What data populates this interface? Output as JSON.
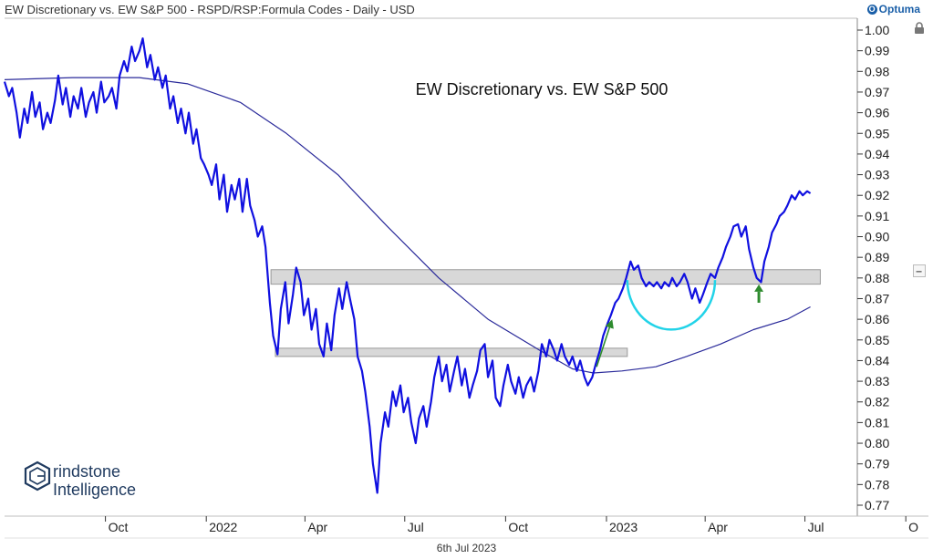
{
  "header": {
    "title": "EW Discretionary vs. EW S&P 500 - RSPD/RSP:Formula Codes - Daily - USD",
    "brand": "Optuma"
  },
  "footer": {
    "date": "6th Jul 2023"
  },
  "watermark": {
    "line1": "rindstone",
    "line2": "Intelligence"
  },
  "chart_data": {
    "type": "line",
    "title": "EW Discretionary vs. EW S&P 500",
    "ylim": [
      0.765,
      1.005
    ],
    "y_ticks": [
      "1.00",
      "0.99",
      "0.98",
      "0.97",
      "0.96",
      "0.95",
      "0.94",
      "0.93",
      "0.92",
      "0.91",
      "0.90",
      "0.89",
      "0.88",
      "0.87",
      "0.86",
      "0.85",
      "0.84",
      "0.83",
      "0.82",
      "0.81",
      "0.80",
      "0.79",
      "0.78",
      "0.77"
    ],
    "x_ticks": [
      "Oct",
      "2022",
      "Apr",
      "Jul",
      "Oct",
      "2023",
      "Apr",
      "Jul",
      "O"
    ],
    "x_range": [
      "2021-07-01",
      "2023-10-15"
    ],
    "x_tick_dates": [
      "2021-10-01",
      "2022-01-01",
      "2022-04-01",
      "2022-07-01",
      "2022-10-01",
      "2023-01-01",
      "2023-04-01",
      "2023-07-01",
      "2023-10-01"
    ],
    "grid": false,
    "series": [
      {
        "role": "price",
        "color": "#1010e0",
        "points": [
          [
            "2021-07-01",
            0.975
          ],
          [
            "2021-07-05",
            0.968
          ],
          [
            "2021-07-08",
            0.972
          ],
          [
            "2021-07-12",
            0.96
          ],
          [
            "2021-07-15",
            0.948
          ],
          [
            "2021-07-19",
            0.962
          ],
          [
            "2021-07-22",
            0.955
          ],
          [
            "2021-07-26",
            0.97
          ],
          [
            "2021-07-29",
            0.958
          ],
          [
            "2021-08-02",
            0.965
          ],
          [
            "2021-08-05",
            0.952
          ],
          [
            "2021-08-09",
            0.96
          ],
          [
            "2021-08-12",
            0.955
          ],
          [
            "2021-08-16",
            0.966
          ],
          [
            "2021-08-19",
            0.978
          ],
          [
            "2021-08-23",
            0.964
          ],
          [
            "2021-08-26",
            0.972
          ],
          [
            "2021-08-30",
            0.958
          ],
          [
            "2021-09-02",
            0.968
          ],
          [
            "2021-09-06",
            0.962
          ],
          [
            "2021-09-09",
            0.972
          ],
          [
            "2021-09-13",
            0.958
          ],
          [
            "2021-09-16",
            0.965
          ],
          [
            "2021-09-20",
            0.97
          ],
          [
            "2021-09-23",
            0.96
          ],
          [
            "2021-09-27",
            0.975
          ],
          [
            "2021-09-30",
            0.965
          ],
          [
            "2021-10-04",
            0.968
          ],
          [
            "2021-10-07",
            0.972
          ],
          [
            "2021-10-11",
            0.962
          ],
          [
            "2021-10-14",
            0.978
          ],
          [
            "2021-10-18",
            0.985
          ],
          [
            "2021-10-21",
            0.98
          ],
          [
            "2021-10-25",
            0.992
          ],
          [
            "2021-10-28",
            0.985
          ],
          [
            "2021-11-01",
            0.99
          ],
          [
            "2021-11-04",
            0.996
          ],
          [
            "2021-11-08",
            0.982
          ],
          [
            "2021-11-11",
            0.988
          ],
          [
            "2021-11-15",
            0.976
          ],
          [
            "2021-11-18",
            0.982
          ],
          [
            "2021-11-22",
            0.972
          ],
          [
            "2021-11-25",
            0.978
          ],
          [
            "2021-11-29",
            0.962
          ],
          [
            "2021-12-02",
            0.968
          ],
          [
            "2021-12-06",
            0.955
          ],
          [
            "2021-12-09",
            0.962
          ],
          [
            "2021-12-13",
            0.95
          ],
          [
            "2021-12-16",
            0.96
          ],
          [
            "2021-12-20",
            0.945
          ],
          [
            "2021-12-23",
            0.952
          ],
          [
            "2021-12-27",
            0.938
          ],
          [
            "2021-12-30",
            0.935
          ],
          [
            "2022-01-03",
            0.93
          ],
          [
            "2022-01-06",
            0.925
          ],
          [
            "2022-01-10",
            0.935
          ],
          [
            "2022-01-13",
            0.918
          ],
          [
            "2022-01-17",
            0.93
          ],
          [
            "2022-01-20",
            0.912
          ],
          [
            "2022-01-24",
            0.925
          ],
          [
            "2022-01-27",
            0.918
          ],
          [
            "2022-01-31",
            0.928
          ],
          [
            "2022-02-03",
            0.912
          ],
          [
            "2022-02-07",
            0.928
          ],
          [
            "2022-02-10",
            0.915
          ],
          [
            "2022-02-14",
            0.908
          ],
          [
            "2022-02-17",
            0.9
          ],
          [
            "2022-02-21",
            0.905
          ],
          [
            "2022-02-24",
            0.895
          ],
          [
            "2022-02-28",
            0.868
          ],
          [
            "2022-03-03",
            0.852
          ],
          [
            "2022-03-07",
            0.843
          ],
          [
            "2022-03-10",
            0.865
          ],
          [
            "2022-03-14",
            0.878
          ],
          [
            "2022-03-17",
            0.858
          ],
          [
            "2022-03-21",
            0.872
          ],
          [
            "2022-03-24",
            0.885
          ],
          [
            "2022-03-28",
            0.878
          ],
          [
            "2022-03-31",
            0.862
          ],
          [
            "2022-04-04",
            0.87
          ],
          [
            "2022-04-07",
            0.855
          ],
          [
            "2022-04-11",
            0.865
          ],
          [
            "2022-04-14",
            0.848
          ],
          [
            "2022-04-18",
            0.842
          ],
          [
            "2022-04-21",
            0.858
          ],
          [
            "2022-04-25",
            0.845
          ],
          [
            "2022-04-28",
            0.862
          ],
          [
            "2022-05-02",
            0.875
          ],
          [
            "2022-05-05",
            0.865
          ],
          [
            "2022-05-09",
            0.878
          ],
          [
            "2022-05-12",
            0.87
          ],
          [
            "2022-05-16",
            0.86
          ],
          [
            "2022-05-19",
            0.842
          ],
          [
            "2022-05-23",
            0.835
          ],
          [
            "2022-05-26",
            0.825
          ],
          [
            "2022-05-30",
            0.808
          ],
          [
            "2022-06-02",
            0.79
          ],
          [
            "2022-06-06",
            0.776
          ],
          [
            "2022-06-09",
            0.8
          ],
          [
            "2022-06-13",
            0.815
          ],
          [
            "2022-06-16",
            0.808
          ],
          [
            "2022-06-20",
            0.825
          ],
          [
            "2022-06-23",
            0.818
          ],
          [
            "2022-06-27",
            0.828
          ],
          [
            "2022-06-30",
            0.815
          ],
          [
            "2022-07-04",
            0.822
          ],
          [
            "2022-07-07",
            0.81
          ],
          [
            "2022-07-11",
            0.8
          ],
          [
            "2022-07-14",
            0.812
          ],
          [
            "2022-07-18",
            0.818
          ],
          [
            "2022-07-21",
            0.808
          ],
          [
            "2022-07-25",
            0.82
          ],
          [
            "2022-07-28",
            0.832
          ],
          [
            "2022-08-01",
            0.842
          ],
          [
            "2022-08-04",
            0.83
          ],
          [
            "2022-08-08",
            0.838
          ],
          [
            "2022-08-11",
            0.825
          ],
          [
            "2022-08-15",
            0.835
          ],
          [
            "2022-08-18",
            0.842
          ],
          [
            "2022-08-22",
            0.828
          ],
          [
            "2022-08-25",
            0.836
          ],
          [
            "2022-08-29",
            0.822
          ],
          [
            "2022-09-01",
            0.828
          ],
          [
            "2022-09-05",
            0.835
          ],
          [
            "2022-09-08",
            0.845
          ],
          [
            "2022-09-12",
            0.848
          ],
          [
            "2022-09-15",
            0.832
          ],
          [
            "2022-09-19",
            0.84
          ],
          [
            "2022-09-22",
            0.822
          ],
          [
            "2022-09-26",
            0.818
          ],
          [
            "2022-09-29",
            0.828
          ],
          [
            "2022-10-03",
            0.838
          ],
          [
            "2022-10-06",
            0.83
          ],
          [
            "2022-10-10",
            0.824
          ],
          [
            "2022-10-13",
            0.832
          ],
          [
            "2022-10-17",
            0.822
          ],
          [
            "2022-10-20",
            0.828
          ],
          [
            "2022-10-24",
            0.832
          ],
          [
            "2022-10-27",
            0.825
          ],
          [
            "2022-10-31",
            0.835
          ],
          [
            "2022-11-03",
            0.848
          ],
          [
            "2022-11-07",
            0.842
          ],
          [
            "2022-11-10",
            0.85
          ],
          [
            "2022-11-14",
            0.845
          ],
          [
            "2022-11-17",
            0.84
          ],
          [
            "2022-11-21",
            0.848
          ],
          [
            "2022-11-24",
            0.842
          ],
          [
            "2022-11-28",
            0.838
          ],
          [
            "2022-12-01",
            0.842
          ],
          [
            "2022-12-05",
            0.835
          ],
          [
            "2022-12-08",
            0.84
          ],
          [
            "2022-12-12",
            0.832
          ],
          [
            "2022-12-15",
            0.828
          ],
          [
            "2022-12-19",
            0.832
          ],
          [
            "2022-12-22",
            0.838
          ],
          [
            "2022-12-26",
            0.845
          ],
          [
            "2022-12-29",
            0.852
          ],
          [
            "2023-01-02",
            0.858
          ],
          [
            "2023-01-05",
            0.862
          ],
          [
            "2023-01-09",
            0.868
          ],
          [
            "2023-01-12",
            0.87
          ],
          [
            "2023-01-16",
            0.875
          ],
          [
            "2023-01-19",
            0.88
          ],
          [
            "2023-01-23",
            0.888
          ],
          [
            "2023-01-26",
            0.884
          ],
          [
            "2023-01-30",
            0.886
          ],
          [
            "2023-02-02",
            0.88
          ],
          [
            "2023-02-06",
            0.876
          ],
          [
            "2023-02-09",
            0.878
          ],
          [
            "2023-02-13",
            0.876
          ],
          [
            "2023-02-16",
            0.878
          ],
          [
            "2023-02-20",
            0.875
          ],
          [
            "2023-02-23",
            0.878
          ],
          [
            "2023-02-27",
            0.876
          ],
          [
            "2023-03-02",
            0.88
          ],
          [
            "2023-03-06",
            0.876
          ],
          [
            "2023-03-09",
            0.878
          ],
          [
            "2023-03-13",
            0.882
          ],
          [
            "2023-03-16",
            0.878
          ],
          [
            "2023-03-20",
            0.87
          ],
          [
            "2023-03-23",
            0.875
          ],
          [
            "2023-03-27",
            0.868
          ],
          [
            "2023-03-30",
            0.872
          ],
          [
            "2023-04-03",
            0.878
          ],
          [
            "2023-04-06",
            0.882
          ],
          [
            "2023-04-10",
            0.88
          ],
          [
            "2023-04-13",
            0.885
          ],
          [
            "2023-04-17",
            0.89
          ],
          [
            "2023-04-20",
            0.895
          ],
          [
            "2023-04-24",
            0.9
          ],
          [
            "2023-04-27",
            0.905
          ],
          [
            "2023-05-01",
            0.906
          ],
          [
            "2023-05-04",
            0.9
          ],
          [
            "2023-05-08",
            0.905
          ],
          [
            "2023-05-11",
            0.894
          ],
          [
            "2023-05-15",
            0.885
          ],
          [
            "2023-05-18",
            0.88
          ],
          [
            "2023-05-22",
            0.878
          ],
          [
            "2023-05-25",
            0.888
          ],
          [
            "2023-05-29",
            0.895
          ],
          [
            "2023-06-01",
            0.902
          ],
          [
            "2023-06-05",
            0.906
          ],
          [
            "2023-06-08",
            0.91
          ],
          [
            "2023-06-12",
            0.912
          ],
          [
            "2023-06-15",
            0.915
          ],
          [
            "2023-06-19",
            0.92
          ],
          [
            "2023-06-22",
            0.918
          ],
          [
            "2023-06-26",
            0.922
          ],
          [
            "2023-06-29",
            0.92
          ],
          [
            "2023-07-03",
            0.922
          ],
          [
            "2023-07-06",
            0.921
          ]
        ]
      },
      {
        "role": "moving-average",
        "color": "#2a2a9a",
        "points": [
          [
            "2021-07-01",
            0.976
          ],
          [
            "2021-09-01",
            0.977
          ],
          [
            "2021-11-01",
            0.977
          ],
          [
            "2021-12-15",
            0.974
          ],
          [
            "2022-02-01",
            0.965
          ],
          [
            "2022-03-15",
            0.95
          ],
          [
            "2022-05-01",
            0.93
          ],
          [
            "2022-06-15",
            0.905
          ],
          [
            "2022-08-01",
            0.88
          ],
          [
            "2022-09-15",
            0.86
          ],
          [
            "2022-11-01",
            0.845
          ],
          [
            "2022-12-01",
            0.836
          ],
          [
            "2022-12-20",
            0.834
          ],
          [
            "2023-01-15",
            0.835
          ],
          [
            "2023-02-15",
            0.837
          ],
          [
            "2023-03-15",
            0.842
          ],
          [
            "2023-04-15",
            0.848
          ],
          [
            "2023-05-15",
            0.855
          ],
          [
            "2023-06-15",
            0.86
          ],
          [
            "2023-07-06",
            0.866
          ]
        ]
      }
    ],
    "zones": [
      {
        "x": [
          "2022-03-01",
          "2023-07-15"
        ],
        "y": [
          0.877,
          0.884
        ],
        "fill": "#d8d8d8"
      },
      {
        "x": [
          "2022-03-05",
          "2023-01-20"
        ],
        "y": [
          0.842,
          0.846
        ],
        "fill": "#d8d8d8"
      }
    ],
    "annotations": [
      {
        "kind": "arc",
        "color": "#22d3e8",
        "center": [
          "2023-03-01",
          0.879
        ],
        "rx_days": 40,
        "ry": 0.012
      },
      {
        "kind": "arrow",
        "color": "#2e8b2e",
        "from": [
          "2022-12-23",
          0.837
        ],
        "to": [
          "2023-01-05",
          0.858
        ]
      },
      {
        "kind": "arrow",
        "color": "#2e8b2e",
        "from": [
          "2023-05-20",
          0.868
        ],
        "to": [
          "2023-05-20",
          0.876
        ],
        "thick": true
      }
    ]
  }
}
